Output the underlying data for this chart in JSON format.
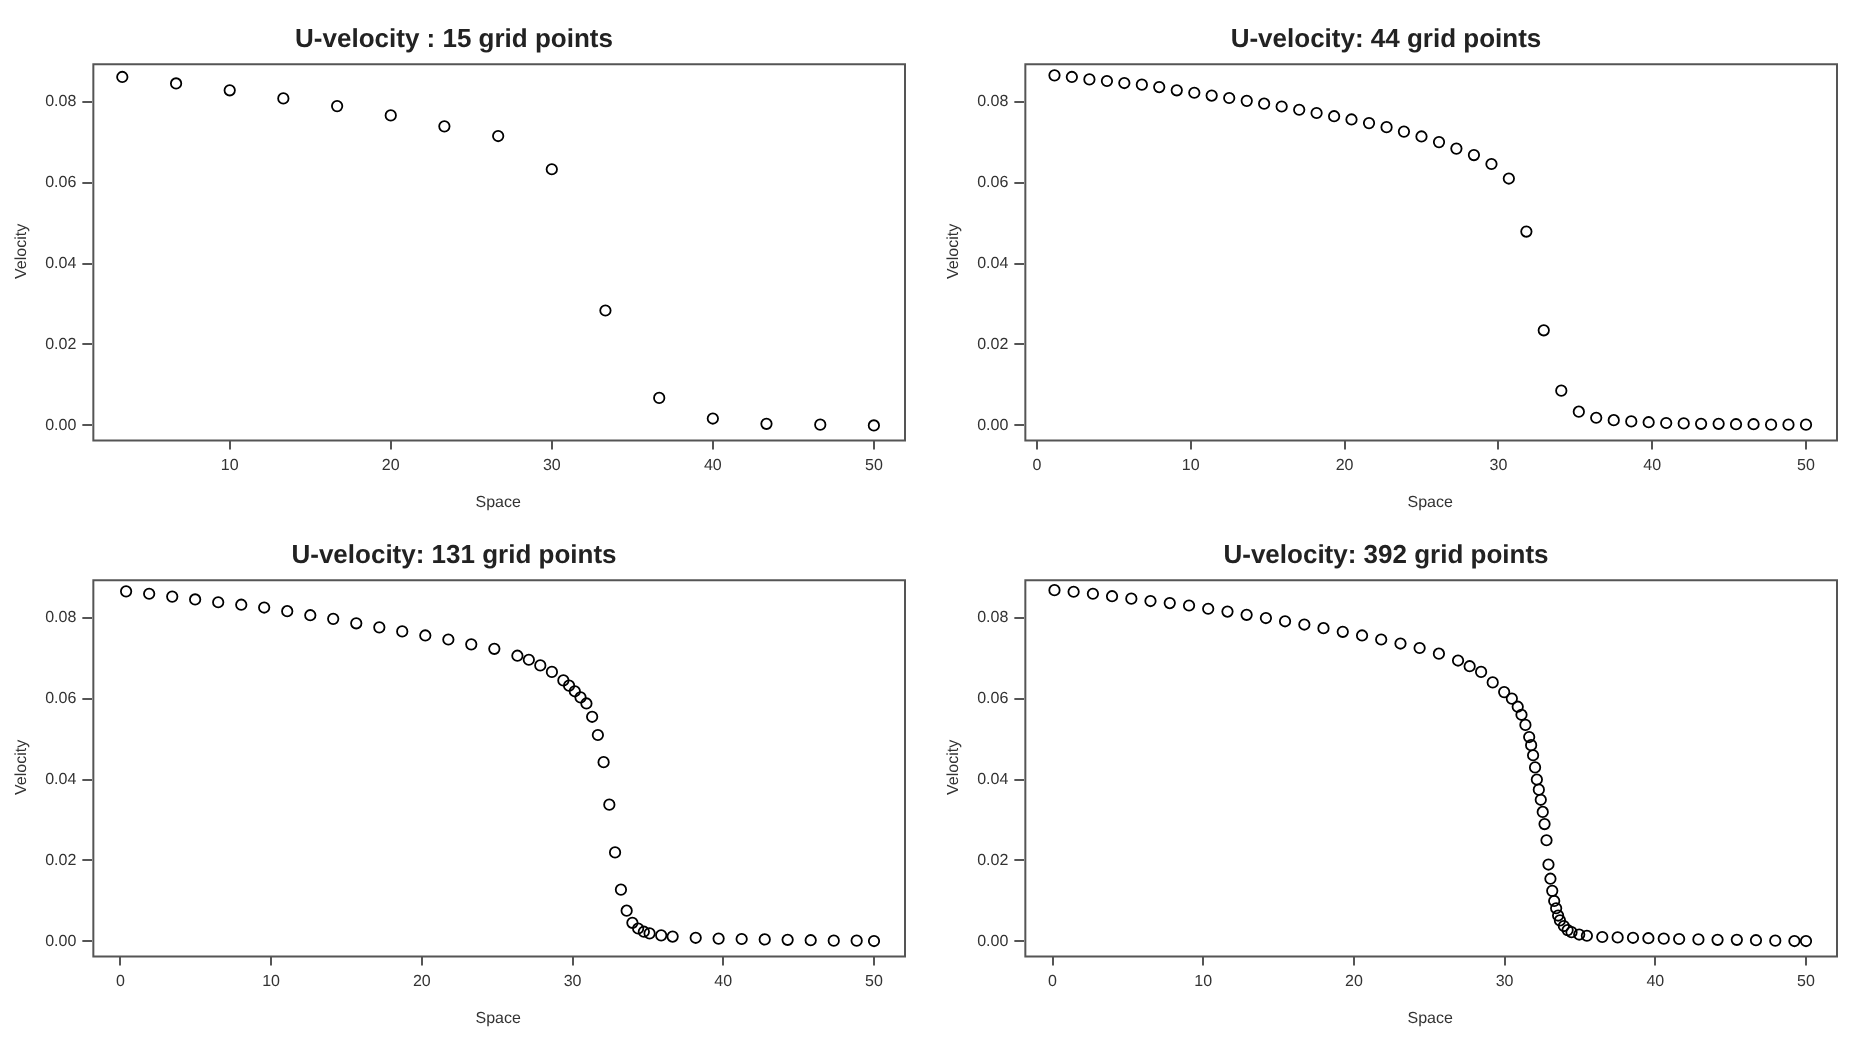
{
  "chart_data": [
    {
      "type": "scatter",
      "title": "U-velocity : 15 grid points",
      "xlabel": "Space",
      "ylabel": "Velocity",
      "color": "#000000",
      "marker": "circle",
      "grid": false,
      "x": [
        3.33,
        6.67,
        10,
        13.33,
        16.67,
        20,
        23.33,
        26.67,
        30,
        33.33,
        36.67,
        40,
        43.33,
        46.67,
        50
      ],
      "values": [
        0.0861,
        0.0845,
        0.0828,
        0.0808,
        0.0789,
        0.0766,
        0.0739,
        0.0715,
        0.0633,
        0.0284,
        0.0068,
        0.0017,
        0.0004,
        0.0002,
        0.0
      ],
      "xlim": [
        1.47,
        51.87
      ],
      "xticks": [
        10,
        20,
        30,
        40,
        50
      ],
      "ylim": [
        -0.0035,
        0.0895
      ],
      "yticks": [
        {
          "value": 0,
          "label": "0.00"
        },
        {
          "value": 0.02,
          "label": "0.02"
        },
        {
          "value": 0.04,
          "label": "0.04"
        },
        {
          "value": 0.06,
          "label": "0.06"
        },
        {
          "value": 0.08,
          "label": "0.08"
        }
      ]
    },
    {
      "type": "scatter",
      "title": "U-velocity: 44 grid points",
      "xlabel": "Space",
      "ylabel": "Velocity",
      "color": "#000000",
      "marker": "circle",
      "grid": false,
      "x": [
        1.14,
        2.27,
        3.41,
        4.55,
        5.68,
        6.82,
        7.95,
        9.09,
        10.23,
        11.36,
        12.5,
        13.64,
        14.77,
        15.91,
        17.05,
        18.18,
        19.32,
        20.45,
        21.59,
        22.73,
        23.86,
        25,
        26.14,
        27.27,
        28.41,
        29.55,
        30.68,
        31.82,
        32.95,
        34.09,
        35.23,
        36.36,
        37.5,
        38.64,
        39.77,
        40.91,
        42.05,
        43.18,
        44.32,
        45.45,
        46.59,
        47.73,
        48.86,
        50
      ],
      "values": [
        0.0865,
        0.0861,
        0.0855,
        0.0851,
        0.0846,
        0.0842,
        0.0836,
        0.0828,
        0.0822,
        0.0815,
        0.0809,
        0.0802,
        0.0795,
        0.0788,
        0.078,
        0.0772,
        0.0764,
        0.0756,
        0.0747,
        0.0737,
        0.0726,
        0.0714,
        0.07,
        0.0684,
        0.0668,
        0.0646,
        0.061,
        0.0479,
        0.0235,
        0.0086,
        0.0034,
        0.0019,
        0.0013,
        0.001,
        0.0008,
        0.0006,
        0.0005,
        0.0004,
        0.0004,
        0.0003,
        0.0003,
        0.0002,
        0.0002,
        0.0002
      ],
      "xlim": [
        -0.82,
        51.95
      ],
      "xticks": [
        0,
        10,
        20,
        30,
        40,
        50
      ],
      "ylim": [
        -0.0035,
        0.0895
      ],
      "yticks": [
        {
          "value": 0,
          "label": "0.00"
        },
        {
          "value": 0.02,
          "label": "0.02"
        },
        {
          "value": 0.04,
          "label": "0.04"
        },
        {
          "value": 0.06,
          "label": "0.06"
        },
        {
          "value": 0.08,
          "label": "0.08"
        }
      ]
    },
    {
      "type": "scatter",
      "title": "U-velocity: 131 grid points",
      "xlabel": "Space",
      "ylabel": "Velocity",
      "color": "#000000",
      "marker": "circle",
      "grid": false,
      "x": [
        0.38,
        1.91,
        3.44,
        4.96,
        6.49,
        8.02,
        9.54,
        11.07,
        12.6,
        14.12,
        15.65,
        17.18,
        18.7,
        20.23,
        21.76,
        23.28,
        24.81,
        26.34,
        27.1,
        27.86,
        28.63,
        29.39,
        29.77,
        30.15,
        30.53,
        30.92,
        31.3,
        31.68,
        32.06,
        32.44,
        32.82,
        33.21,
        33.59,
        33.97,
        34.35,
        34.73,
        35.11,
        35.88,
        36.64,
        38.17,
        39.69,
        41.22,
        42.75,
        44.27,
        45.8,
        47.33,
        48.85,
        50
      ],
      "values": [
        0.0865,
        0.0859,
        0.0852,
        0.0845,
        0.0838,
        0.0832,
        0.0825,
        0.0816,
        0.0806,
        0.0797,
        0.0786,
        0.0776,
        0.0766,
        0.0756,
        0.0746,
        0.0734,
        0.0723,
        0.0706,
        0.0696,
        0.0682,
        0.0666,
        0.0645,
        0.0632,
        0.0618,
        0.0603,
        0.0588,
        0.0555,
        0.051,
        0.0443,
        0.0338,
        0.022,
        0.0128,
        0.0076,
        0.0046,
        0.0032,
        0.0024,
        0.002,
        0.0015,
        0.0012,
        0.0009,
        0.0007,
        0.0006,
        0.0005,
        0.0004,
        0.0003,
        0.0002,
        0.0002,
        0.0001
      ],
      "xlim": [
        -1.86,
        51.99
      ],
      "xticks": [
        0,
        10,
        20,
        30,
        40,
        50
      ],
      "ylim": [
        -0.0035,
        0.0895
      ],
      "yticks": [
        {
          "value": 0,
          "label": "0.00"
        },
        {
          "value": 0.02,
          "label": "0.02"
        },
        {
          "value": 0.04,
          "label": "0.04"
        },
        {
          "value": 0.06,
          "label": "0.06"
        },
        {
          "value": 0.08,
          "label": "0.08"
        }
      ]
    },
    {
      "type": "scatter",
      "title": "U-velocity: 392 grid points",
      "xlabel": "Space",
      "ylabel": "Velocity",
      "color": "#000000",
      "marker": "circle",
      "grid": false,
      "x": [
        0.13,
        1.4,
        2.68,
        3.95,
        5.23,
        6.5,
        7.78,
        9.06,
        10.33,
        11.61,
        12.88,
        14.16,
        15.43,
        16.71,
        17.98,
        19.26,
        20.54,
        21.81,
        23.09,
        24.36,
        25.64,
        26.91,
        27.68,
        28.44,
        29.21,
        29.97,
        30.48,
        30.87,
        31.12,
        31.38,
        31.63,
        31.76,
        31.89,
        32.02,
        32.14,
        32.27,
        32.4,
        32.53,
        32.65,
        32.78,
        32.91,
        33.04,
        33.16,
        33.29,
        33.42,
        33.55,
        33.67,
        33.93,
        34.18,
        34.44,
        34.95,
        35.46,
        36.48,
        37.5,
        38.52,
        39.54,
        40.56,
        41.58,
        42.86,
        44.13,
        45.41,
        46.68,
        47.96,
        49.23,
        50
      ],
      "values": [
        0.0868,
        0.0864,
        0.0859,
        0.0853,
        0.0847,
        0.0841,
        0.0836,
        0.083,
        0.0822,
        0.0815,
        0.0807,
        0.0799,
        0.0791,
        0.0783,
        0.0774,
        0.0765,
        0.0756,
        0.0746,
        0.0736,
        0.0725,
        0.0711,
        0.0694,
        0.068,
        0.0666,
        0.064,
        0.0616,
        0.06,
        0.058,
        0.056,
        0.0535,
        0.0505,
        0.0485,
        0.046,
        0.043,
        0.04,
        0.0375,
        0.035,
        0.032,
        0.029,
        0.025,
        0.019,
        0.0155,
        0.0125,
        0.01,
        0.0082,
        0.0064,
        0.0052,
        0.0038,
        0.0028,
        0.0023,
        0.0017,
        0.0014,
        0.0011,
        0.001,
        0.0009,
        0.0008,
        0.0007,
        0.0006,
        0.0005,
        0.0004,
        0.0004,
        0.0003,
        0.0002,
        0.0001,
        0.0001
      ],
      "xlim": [
        -1.87,
        51.99
      ],
      "xticks": [
        0,
        10,
        20,
        30,
        40,
        50
      ],
      "ylim": [
        -0.0035,
        0.0895
      ],
      "yticks": [
        {
          "value": 0,
          "label": "0.00"
        },
        {
          "value": 0.02,
          "label": "0.02"
        },
        {
          "value": 0.04,
          "label": "0.04"
        },
        {
          "value": 0.06,
          "label": "0.06"
        },
        {
          "value": 0.08,
          "label": "0.08"
        }
      ]
    }
  ]
}
